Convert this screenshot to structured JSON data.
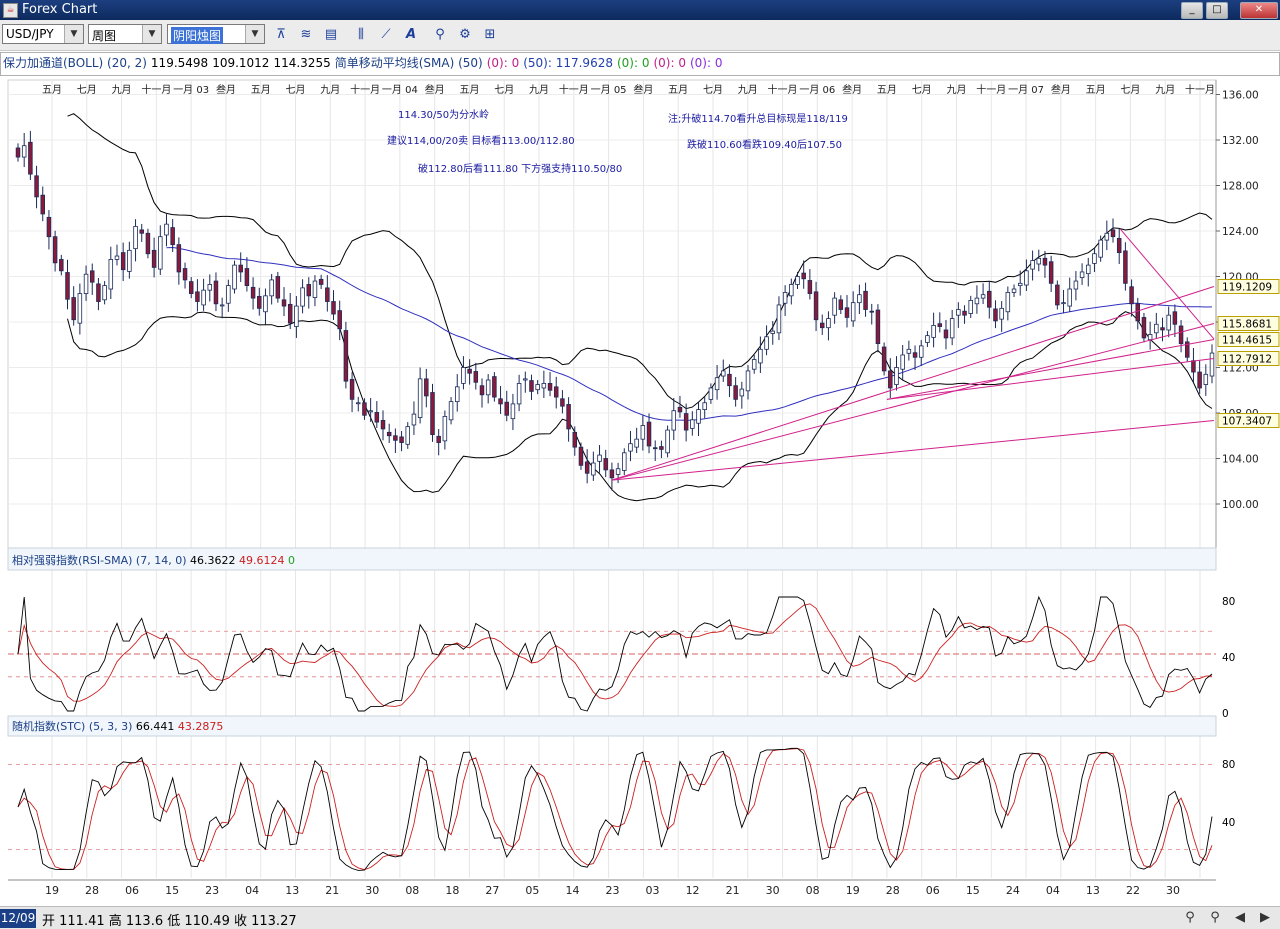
{
  "window": {
    "title": "Forex Chart",
    "app_icon": "java-icon",
    "buttons": [
      "_",
      "□",
      "✕"
    ]
  },
  "toolbar": {
    "symbol": "USD/JPY",
    "period": "周图",
    "chart_type": "阴阳烛图",
    "tools": [
      "draw-line-icon",
      "indicator-icon",
      "panel-icon",
      "chart-bar-icon",
      "chart-line-icon",
      "text-icon",
      "zoom-icon",
      "settings-icon",
      "layout-icon"
    ]
  },
  "infobar": {
    "boll_name": "保力加通道(BOLL) (20, 2)",
    "boll_upper": "119.5498",
    "boll_lower": "109.1012",
    "boll_mid": "114.3255",
    "sma_name": "简单移动平均线(SMA) (50)",
    "sma_a": "(0): 0",
    "sma_b": "(50): 117.9628",
    "sma_c": "(0): 0",
    "sma_d": "(0): 0",
    "sma_e": "(0): 0"
  },
  "notes": [
    "114.30/50为分水岭",
    "建议114,00/20卖    目标看113.00/112.80",
    "破112.80后看111.80   下方强支持110.50/80",
    "注;升破114.70看升总目标现是118/119",
    "跌破110.60看跌109.40后107.50"
  ],
  "time_axis": [
    "五月",
    "七月",
    "九月",
    "十一月",
    "一月 03",
    "叁月",
    "五月",
    "七月",
    "九月",
    "十一月",
    "一月 04",
    "叁月",
    "五月",
    "七月",
    "九月",
    "十一月",
    "一月 05",
    "叁月",
    "五月",
    "七月",
    "九月",
    "十一月",
    "一月 06",
    "叁月",
    "五月",
    "七月",
    "九月",
    "十一月",
    "一月 07",
    "叁月",
    "五月",
    "七月",
    "九月",
    "十一月"
  ],
  "bottom_axis": [
    "19",
    "28",
    "06",
    "15",
    "23",
    "04",
    "13",
    "21",
    "30",
    "08",
    "18",
    "27",
    "05",
    "14",
    "23",
    "03",
    "12",
    "21",
    "30",
    "08",
    "19",
    "28",
    "06",
    "15",
    "24",
    "04",
    "13",
    "22",
    "30"
  ],
  "price_axis": [
    "136.00",
    "132.00",
    "128.00",
    "124.00",
    "120.00",
    "116.00",
    "112.00",
    "108.00",
    "104.00",
    "100.00"
  ],
  "price_labels": [
    "119.1209",
    "115.8681",
    "114.4615",
    "112.7912",
    "107.3407"
  ],
  "rsi": {
    "name": "相对强弱指数(RSI-SMA) (7, 14, 0)",
    "v1": "46.3622",
    "v2": "49.6124",
    "v3": "0",
    "axis": [
      "80",
      "40",
      "0"
    ]
  },
  "stc": {
    "name": "随机指数(STC) (5, 3, 3)",
    "v1": "66.441",
    "v2": "43.2875",
    "axis": [
      "80",
      "40"
    ]
  },
  "status": {
    "date": "12/09",
    "ohlc": "开 111.41 高 113.6 低 110.49 收 113.27"
  },
  "colors": {
    "up": "#1a2a5a",
    "down": "#8a1a3a",
    "boll": "#000000",
    "sma": "#3030c0",
    "trend": "#d0208a",
    "signal": "#cc2020"
  },
  "chart_data": {
    "type": "candlestick",
    "price_range": [
      98,
      137
    ],
    "closes": [
      130.5,
      131.5,
      129,
      127,
      125.5,
      123.5,
      121.2,
      120.5,
      118,
      116.2,
      118.5,
      120.2,
      119.5,
      117.8,
      119.2,
      121.5,
      121.8,
      120.6,
      122.3,
      124.4,
      123.8,
      122,
      120.8,
      123.5,
      124.6,
      122.8,
      120.4,
      119.7,
      118.5,
      117.8,
      118.8,
      119.3,
      117.6,
      117.5,
      119.2,
      121.0,
      120.4,
      119.2,
      118.1,
      117.2,
      118.3,
      119.7,
      118.1,
      117.4,
      115.9,
      117.4,
      119.0,
      118.3,
      119.6,
      119.3,
      117.8,
      116.7,
      115.4,
      110.8,
      109.2,
      108.9,
      107.8,
      108.2,
      107.2,
      106.6,
      106.0,
      105.6,
      105.4,
      106.8,
      107.9,
      111.0,
      109.5,
      106.1,
      105.4,
      107.7,
      109.0,
      110.3,
      112.0,
      111.5,
      110.7,
      109.6,
      110.9,
      109.4,
      108.8,
      107.8,
      108.8,
      110.6,
      111.0,
      109.9,
      110.5,
      110.6,
      110.0,
      109.4,
      108.6,
      106.6,
      105.0,
      103.4,
      102.7,
      103.6,
      104.3,
      103.0,
      102.3,
      103.1,
      104.5,
      105.3,
      105.7,
      106.9,
      105.1,
      104.9,
      104.8,
      106.5,
      108.2,
      108.1,
      106.5,
      107.4,
      108.3,
      108.9,
      110.2,
      111.1,
      111.7,
      110.4,
      109.2,
      110.1,
      111.7,
      112.7,
      113.6,
      114.7,
      115.2,
      117.5,
      118.6,
      119.3,
      120.0,
      119.8,
      118.5,
      116.2,
      115.5,
      116.3,
      118.1,
      117.1,
      116.4,
      117.7,
      118.4,
      117.1,
      116.9,
      114.1,
      111.7,
      110.2,
      112.0,
      113.1,
      113.6,
      112.9,
      113.9,
      114.8,
      115.7,
      115.6,
      114.6,
      116.3,
      117.1,
      116.6,
      117.9,
      118.1,
      118.4,
      117.3,
      116.1,
      117.2,
      118.6,
      118.9,
      119.4,
      120.5,
      121.4,
      121.6,
      121.0,
      119.4,
      117.5,
      117.7,
      118.9,
      119.6,
      120.4,
      121.0,
      122.0,
      123.2,
      123.8,
      123.5,
      122.1,
      119.4,
      117.6,
      116.1,
      114.6,
      114.9,
      115.8,
      115.3,
      116.6,
      115.8,
      114.1,
      112.9,
      111.6,
      110.2,
      111.4,
      113.27
    ],
    "trendline_ends": [
      119.1209,
      115.8681,
      114.4615,
      112.7912,
      107.3407
    ]
  }
}
